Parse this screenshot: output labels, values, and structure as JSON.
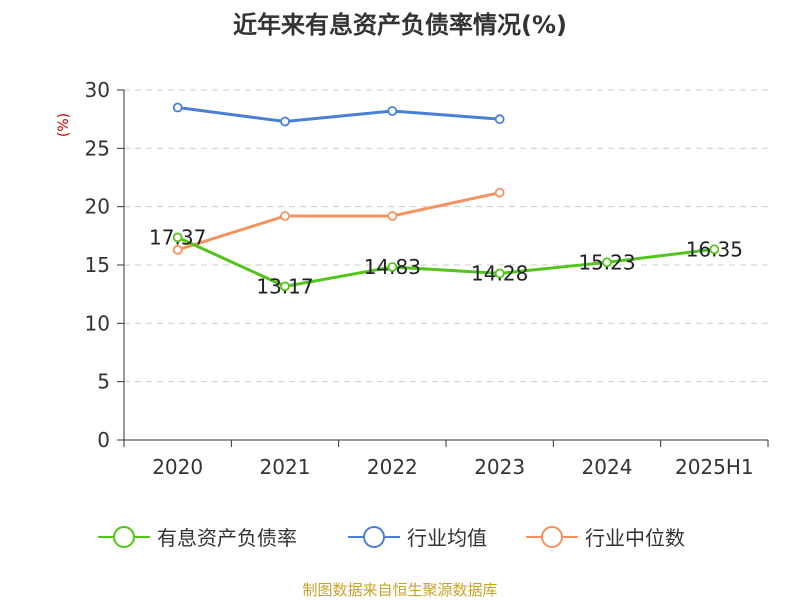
{
  "chart_data": {
    "type": "line",
    "title": "近年来有息资产负债率情况(%)",
    "ylabel": "(%)",
    "categories": [
      "2020",
      "2021",
      "2022",
      "2023",
      "2024",
      "2025H1"
    ],
    "ylim": [
      0,
      30
    ],
    "yticks": [
      "0",
      "5",
      "10",
      "15",
      "20",
      "25",
      "30"
    ],
    "grid": true,
    "legend_position": "bottom",
    "series": [
      {
        "name": "有息资产负债率",
        "color": "#52c41a",
        "values": [
          17.37,
          13.17,
          14.83,
          14.28,
          15.23,
          16.35
        ],
        "labels": [
          "17.37",
          "13.17",
          "14.83",
          "14.28",
          "15.23",
          "16.35"
        ]
      },
      {
        "name": "行业均值",
        "color": "#4a7fd6",
        "values": [
          28.5,
          27.3,
          28.2,
          27.5,
          null,
          null
        ]
      },
      {
        "name": "行业中位数",
        "color": "#f4935f",
        "values": [
          16.3,
          19.2,
          19.2,
          21.2,
          null,
          null
        ]
      }
    ]
  },
  "source_text": "制图数据来自恒生聚源数据库",
  "colors": {
    "ylabel": "#cc0000",
    "source": "#c9a227",
    "grid": "#cccccc",
    "axis": "#333333"
  }
}
